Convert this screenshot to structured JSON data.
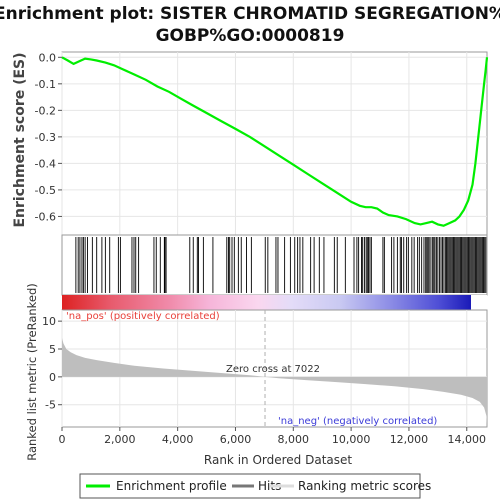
{
  "chart_data": {
    "type": "line",
    "title_lines": [
      "Enrichment plot: SISTER CHROMATID SEGREGATION%",
      "GOBP%GO:0000819"
    ],
    "ylabel_es": "Enrichment score (ES)",
    "ylabel_rank": "Ranked list metric (PreRanked)",
    "xlabel": "Rank in Ordered Dataset",
    "x_ticks": [
      0,
      2000,
      4000,
      6000,
      8000,
      10000,
      12000,
      14000
    ],
    "x_tick_labels": [
      "0",
      "2,000",
      "4,000",
      "6,000",
      "8,000",
      "10,000",
      "12,000",
      "14,000"
    ],
    "xlim": [
      0,
      14700
    ],
    "es_yticks": [
      0.0,
      -0.1,
      -0.2,
      -0.3,
      -0.4,
      -0.5,
      -0.6
    ],
    "es_ytick_labels": [
      "0.0",
      "-0.1",
      "-0.2",
      "-0.3",
      "-0.4",
      "-0.5",
      "-0.6"
    ],
    "es_ylim": [
      -0.67,
      0.02
    ],
    "rank_yticks": [
      10,
      5,
      0,
      -5
    ],
    "rank_ytick_labels": [
      "10",
      "5",
      "0",
      "-5"
    ],
    "rank_ylim": [
      -9,
      12
    ],
    "n_genes": 14700,
    "zero_cross": 7022,
    "zero_cross_label": "Zero cross at 7022",
    "pos_label": "'na_pos' (positively correlated)",
    "neg_label": "'na_neg' (negatively correlated)",
    "es_curve": {
      "x": [
        0,
        200,
        400,
        600,
        800,
        1000,
        1200,
        1500,
        1800,
        2100,
        2500,
        2900,
        3300,
        3700,
        4100,
        4500,
        5000,
        5500,
        6000,
        6500,
        7000,
        7500,
        8000,
        8500,
        9000,
        9500,
        10000,
        10300,
        10500,
        10700,
        10900,
        11100,
        11300,
        11600,
        11900,
        12200,
        12400,
        12600,
        12800,
        13000,
        13200,
        13400,
        13600,
        13750,
        13900,
        14050,
        14200,
        14300,
        14400,
        14500,
        14600,
        14650,
        14700
      ],
      "y": [
        0.0,
        -0.012,
        -0.025,
        -0.015,
        -0.005,
        -0.008,
        -0.012,
        -0.02,
        -0.03,
        -0.045,
        -0.065,
        -0.085,
        -0.11,
        -0.13,
        -0.155,
        -0.18,
        -0.21,
        -0.24,
        -0.27,
        -0.3,
        -0.335,
        -0.37,
        -0.405,
        -0.44,
        -0.475,
        -0.51,
        -0.545,
        -0.56,
        -0.565,
        -0.565,
        -0.57,
        -0.585,
        -0.595,
        -0.6,
        -0.61,
        -0.625,
        -0.63,
        -0.625,
        -0.62,
        -0.63,
        -0.635,
        -0.625,
        -0.615,
        -0.6,
        -0.575,
        -0.54,
        -0.48,
        -0.4,
        -0.3,
        -0.2,
        -0.1,
        -0.05,
        0.0
      ]
    },
    "hits": [
      480,
      560,
      620,
      690,
      740,
      800,
      880,
      1050,
      1200,
      1380,
      1500,
      1650,
      1950,
      2020,
      2420,
      2490,
      2550,
      2650,
      3180,
      3260,
      3400,
      3540,
      3560,
      3600,
      4420,
      4540,
      4680,
      4720,
      4890,
      5220,
      5700,
      5760,
      5800,
      5880,
      5960,
      6100,
      6200,
      6380,
      6550,
      7030,
      7120,
      7400,
      7470,
      7700,
      7900,
      8050,
      8150,
      8230,
      8330,
      8600,
      8720,
      8900,
      9060,
      9420,
      9520,
      9800,
      10100,
      10200,
      10260,
      10360,
      10400,
      10460,
      10520,
      10560,
      10600,
      10650,
      10700,
      11100,
      11150,
      11400,
      11480,
      11600,
      11700,
      11740,
      11820,
      11920,
      11980,
      12100,
      12180,
      12300,
      12360,
      12440,
      12520,
      12580,
      12620,
      12660,
      12700,
      12760,
      12820,
      12860,
      12900,
      12950,
      13000,
      13060,
      13110,
      13160,
      13210,
      13260,
      13300,
      13340,
      13380,
      13420,
      13460,
      13500,
      13540,
      13580,
      13620,
      13660,
      13700,
      13740,
      13780,
      13820,
      13860,
      13900,
      13940,
      13980,
      14020,
      14060,
      14100,
      14140,
      14180,
      14220,
      14260,
      14300,
      14340,
      14380,
      14420,
      14460,
      14500,
      14540,
      14580,
      14620,
      14660
    ],
    "metric_curve": {
      "x": [
        0,
        50,
        150,
        300,
        500,
        800,
        1200,
        1800,
        2500,
        3500,
        4500,
        5500,
        6500,
        7022,
        7500,
        8500,
        9500,
        10500,
        11500,
        12500,
        13200,
        13800,
        14200,
        14450,
        14600,
        14680,
        14700
      ],
      "y": [
        7.0,
        6.0,
        5.0,
        4.4,
        3.9,
        3.4,
        3.0,
        2.5,
        2.0,
        1.5,
        1.1,
        0.7,
        0.3,
        0.0,
        -0.25,
        -0.6,
        -0.95,
        -1.3,
        -1.7,
        -2.2,
        -2.7,
        -3.2,
        -3.8,
        -4.5,
        -5.5,
        -7.0,
        -8.5
      ]
    },
    "legend": [
      "Enrichment profile",
      "Hits",
      "Ranking metric scores"
    ],
    "colors": {
      "es_line": "#00ee00",
      "hits": "#000000",
      "metric_fill": "#bebebe",
      "pos_text": "#e8403a",
      "neg_text": "#3c3cd8",
      "zero_line": "#b0b0b0"
    }
  }
}
